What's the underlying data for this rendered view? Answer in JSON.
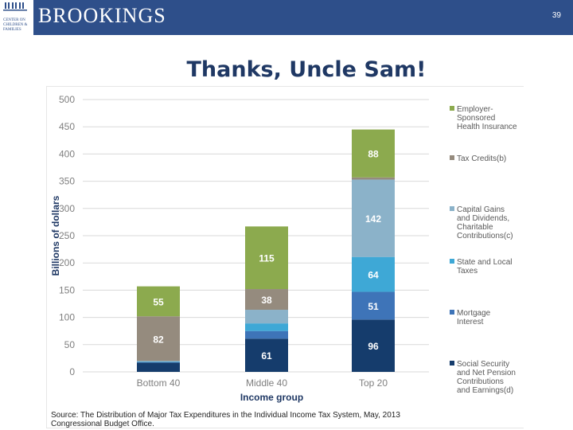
{
  "header": {
    "brand": "BROOKINGS",
    "logo_text": "CENTER ON\nCHILDREN &\nFAMILIES",
    "page_number": "39"
  },
  "title": "Thanks, Uncle Sam!",
  "colors": {
    "header_bg": "#2e4f8a",
    "employer": "#8caa4e",
    "tax_credits": "#958b7e",
    "capital_gains": "#8bb2c9",
    "state_local": "#3ea8d6",
    "mortgage": "#3e74b8",
    "social_security": "#153c6c"
  },
  "chart_data": {
    "type": "bar",
    "stacked": true,
    "title": "",
    "xlabel": "Income group",
    "ylabel": "Billions of dollars",
    "ylim": [
      0,
      500
    ],
    "yticks": [
      0,
      50,
      100,
      150,
      200,
      250,
      300,
      350,
      400,
      450,
      500
    ],
    "grid": true,
    "legend_position": "right",
    "categories": [
      "Bottom 40",
      "Middle 40",
      "Top 20"
    ],
    "series": [
      {
        "name": "Social Security and Net Pension Contributions and Earnings(d)",
        "color": "#153c6c",
        "values": [
          17,
          61,
          96
        ],
        "labels": [
          "",
          "61",
          "96"
        ]
      },
      {
        "name": "Mortgage Interest",
        "color": "#3e74b8",
        "values": [
          1,
          14,
          51
        ],
        "labels": [
          "",
          "",
          "51"
        ]
      },
      {
        "name": "State and Local Taxes",
        "color": "#3ea8d6",
        "values": [
          1,
          14,
          64
        ],
        "labels": [
          "",
          "",
          "64"
        ]
      },
      {
        "name": "Capital Gains and Dividends, Charitable Contributions(c)",
        "color": "#8bb2c9",
        "values": [
          1,
          25,
          142
        ],
        "labels": [
          "",
          "",
          "142"
        ]
      },
      {
        "name": "Tax Credits(b)",
        "color": "#958b7e",
        "values": [
          82,
          38,
          4
        ],
        "labels": [
          "82",
          "38",
          ""
        ]
      },
      {
        "name": "Employer-Sponsored Health Insurance",
        "color": "#8caa4e",
        "values": [
          55,
          115,
          88
        ],
        "labels": [
          "55",
          "115",
          "88"
        ]
      }
    ],
    "legend": [
      {
        "text": "Employer-\nSponsored\nHealth Insurance",
        "color": "#8caa4e"
      },
      {
        "text": "Tax Credits(b)",
        "color": "#958b7e"
      },
      {
        "text": "Capital Gains\nand Dividends,\nCharitable\nContributions(c)",
        "color": "#8bb2c9"
      },
      {
        "text": "State and Local\nTaxes",
        "color": "#3ea8d6"
      },
      {
        "text": "Mortgage\nInterest",
        "color": "#3e74b8"
      },
      {
        "text": "Social Security\nand Net Pension\nContributions\nand Earnings(d)",
        "color": "#153c6c"
      }
    ]
  },
  "source": "Source: The Distribution of Major Tax Expenditures in the Individual Income Tax System, May, 2013\nCongressional Budget Office."
}
